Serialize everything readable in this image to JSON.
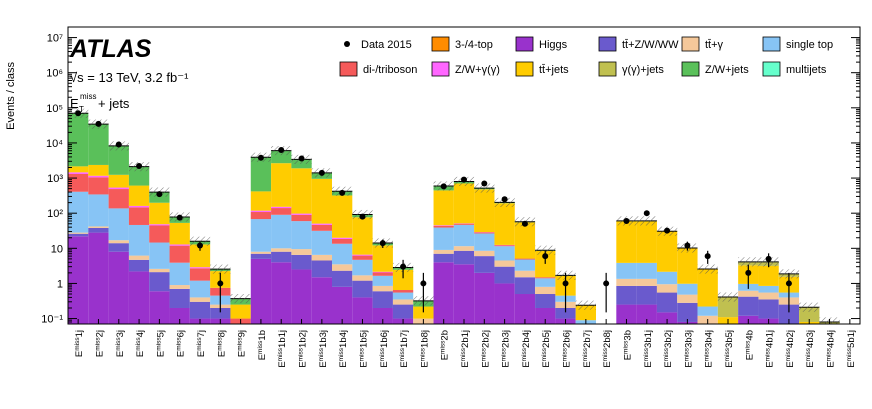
{
  "chart_data": {
    "type": "bar",
    "subtype": "stacked-histogram-log",
    "experiment": "ATLAS",
    "energy_label": "√s = 13 TeV, 3.2 fb⁻¹",
    "selection_label": "E_T^miss + jets",
    "ylabel": "Events / class",
    "yscale": "log",
    "ylim": [
      0.07,
      20000000
    ],
    "ytick_labels": [
      "10⁻¹",
      "1",
      "10",
      "10²",
      "10³",
      "10⁴",
      "10⁵",
      "10⁶",
      "10⁷"
    ],
    "ytick_values": [
      0.1,
      1,
      10,
      100,
      1000,
      10000,
      100000,
      1000000,
      10000000
    ],
    "categories": [
      "1j",
      "2j",
      "3j",
      "4j",
      "5j",
      "6j",
      "7j",
      "8j",
      "9j",
      "1b",
      "1b1j",
      "1b2j",
      "1b3j",
      "1b4j",
      "1b5j",
      "1b6j",
      "1b7j",
      "1b8j",
      "2b",
      "2b1j",
      "2b2j",
      "2b3j",
      "2b4j",
      "2b5j",
      "2b6j",
      "2b7j",
      "2b8j",
      "3b",
      "3b1j",
      "3b2j",
      "3b3j",
      "3b4j",
      "3b5j",
      "4b",
      "4b1j",
      "4b2j",
      "4b3j",
      "4b4j",
      "5b1j"
    ],
    "category_prefix": "E_T^miss",
    "legend": [
      {
        "name": "Data 2015",
        "kind": "marker"
      },
      {
        "name": "3-/4-top",
        "color": "#ff8c00"
      },
      {
        "name": "Higgs",
        "color": "#9932cc"
      },
      {
        "name": "tt̄+Z/W/WW",
        "color": "#6a5acd"
      },
      {
        "name": "tt̄+γ",
        "color": "#f5c89a"
      },
      {
        "name": "single top",
        "color": "#87c4f5"
      },
      {
        "name": "di-/triboson",
        "color": "#f55a5a"
      },
      {
        "name": "Z/W+γ(γ)",
        "color": "#ff66ff"
      },
      {
        "name": "tt̄+jets",
        "color": "#ffcc00"
      },
      {
        "name": "γ(γ)+jets",
        "color": "#c0c050"
      },
      {
        "name": "Z/W+jets",
        "color": "#5ac05a"
      },
      {
        "name": "multijets",
        "color": "#66ffcc"
      }
    ],
    "stack_order": [
      "Higgs",
      "tt̄+Z/W/WW",
      "tt̄+γ",
      "single top",
      "di-/triboson",
      "Z/W+γ(γ)",
      "tt̄+jets",
      "γ(γ)+jets",
      "Z/W+jets",
      "3-/4-top",
      "multijets"
    ],
    "stacks": [
      [
        22,
        4,
        2,
        380,
        900,
        150,
        700,
        0,
        68000,
        0,
        0
      ],
      [
        28,
        10,
        4,
        300,
        700,
        120,
        1200,
        0,
        32000,
        0,
        0
      ],
      [
        8,
        6,
        3,
        120,
        350,
        50,
        700,
        0,
        7000,
        0,
        0
      ],
      [
        2.2,
        2.5,
        1.5,
        40,
        100,
        15,
        450,
        0,
        1500,
        0,
        0
      ],
      [
        0.6,
        1.5,
        0.5,
        12,
        30,
        4,
        150,
        0,
        200,
        0,
        0
      ],
      [
        0.2,
        0.5,
        0.2,
        3,
        8,
        1,
        40,
        0,
        25,
        0,
        0
      ],
      [
        0.1,
        0.2,
        0.1,
        0.8,
        1.5,
        0.2,
        10,
        0,
        3,
        0,
        0
      ],
      [
        0.1,
        0.1,
        0.05,
        0.2,
        0.3,
        0,
        1.5,
        0,
        0.3,
        0,
        0
      ],
      [
        0,
        0,
        0,
        0.05,
        0.05,
        0,
        0.15,
        0,
        0.12,
        0,
        0
      ],
      [
        5,
        2,
        1,
        60,
        40,
        10,
        300,
        0,
        3500,
        0,
        0
      ],
      [
        4,
        4,
        2,
        80,
        50,
        12,
        2500,
        0,
        3400,
        0,
        0
      ],
      [
        2.5,
        4,
        3,
        50,
        30,
        8,
        1800,
        0,
        1500,
        0,
        0
      ],
      [
        1.5,
        3,
        2,
        25,
        15,
        4,
        900,
        0,
        450,
        0,
        0
      ],
      [
        0.8,
        1.5,
        1.2,
        10,
        5,
        1.5,
        300,
        0,
        100,
        0,
        0
      ],
      [
        0.4,
        0.8,
        0.5,
        3,
        1.5,
        0.4,
        70,
        0,
        15,
        0,
        0
      ],
      [
        0.2,
        0.4,
        0.25,
        0.8,
        0.4,
        0.1,
        10,
        0,
        2,
        0,
        0
      ],
      [
        0.1,
        0.15,
        0.1,
        0.2,
        0.1,
        0,
        1.8,
        0,
        0.4,
        0,
        0
      ],
      [
        0,
        0.05,
        0.05,
        0,
        0,
        0,
        0.12,
        0,
        0.1,
        0,
        0
      ],
      [
        4,
        3,
        2,
        30,
        5,
        1.5,
        400,
        0,
        150,
        0,
        0
      ],
      [
        3.5,
        5,
        3,
        35,
        4,
        1,
        650,
        0,
        100,
        0,
        0
      ],
      [
        2,
        4,
        2.5,
        18,
        2,
        0.5,
        450,
        0,
        40,
        0,
        0
      ],
      [
        1,
        2,
        1.5,
        7,
        0.8,
        0.2,
        180,
        0,
        10,
        0,
        0
      ],
      [
        0.5,
        1,
        0.8,
        2.5,
        0.3,
        0,
        50,
        0,
        2,
        0,
        0
      ],
      [
        0.2,
        0.3,
        0.3,
        0.6,
        0.1,
        0,
        7,
        0,
        0.3,
        0,
        0
      ],
      [
        0.1,
        0.1,
        0.1,
        0.15,
        0,
        0,
        1.2,
        0,
        0.05,
        0,
        0
      ],
      [
        0,
        0.03,
        0.03,
        0.03,
        0,
        0,
        0.15,
        0,
        0,
        0,
        0
      ],
      [
        0,
        0,
        0,
        0,
        0,
        0,
        0,
        0,
        0,
        0,
        0
      ],
      [
        0.25,
        0.6,
        0.5,
        2.5,
        0,
        0,
        55,
        0,
        1.5,
        0,
        0
      ],
      [
        0.25,
        0.6,
        0.5,
        2.5,
        0,
        0,
        55,
        0,
        1.5,
        0,
        0
      ],
      [
        0.15,
        0.4,
        0.4,
        1.2,
        0,
        0,
        28,
        0,
        0.5,
        0,
        0
      ],
      [
        0.08,
        0.2,
        0.2,
        0.5,
        0,
        0,
        9,
        0,
        0.2,
        0,
        0
      ],
      [
        0.02,
        0.05,
        0.05,
        0.1,
        0,
        0,
        2.3,
        0,
        0.05,
        0,
        0
      ],
      [
        0.01,
        0,
        0,
        0,
        0,
        0,
        0.1,
        0.3,
        0,
        0,
        0
      ],
      [
        0.12,
        0.3,
        0.2,
        0.35,
        0,
        0,
        2.3,
        0.8,
        0.05,
        0,
        0
      ],
      [
        0.1,
        0.25,
        0.2,
        0.3,
        0,
        0,
        2.3,
        0.9,
        0.05,
        0,
        0
      ],
      [
        0.05,
        0.2,
        0.15,
        0.15,
        0,
        0,
        1,
        0.3,
        0.02,
        0,
        0
      ],
      [
        0.01,
        0,
        0.02,
        0,
        0,
        0,
        0.05,
        0.13,
        0,
        0,
        0
      ],
      [
        0,
        0,
        0,
        0,
        0,
        0,
        0.02,
        0.06,
        0,
        0,
        0
      ],
      [
        0,
        0,
        0,
        0,
        0,
        0,
        0.01,
        0.04,
        0,
        0,
        0
      ]
    ],
    "data_points": [
      70000,
      35000,
      9000,
      2200,
      350,
      75,
      12,
      1,
      null,
      3800,
      6300,
      3600,
      1400,
      380,
      80,
      14,
      3,
      1,
      580,
      900,
      700,
      250,
      50,
      6,
      1,
      null,
      1,
      60,
      100,
      32,
      12,
      6,
      null,
      2,
      5,
      1,
      null,
      null,
      null
    ],
    "data_errors": [
      270,
      190,
      95,
      47,
      19,
      9,
      3.5,
      1,
      0,
      62,
      80,
      60,
      37,
      20,
      9,
      3.8,
      1.7,
      1,
      24,
      30,
      27,
      16,
      7,
      2.5,
      1,
      0,
      1,
      8,
      10,
      5.7,
      3.5,
      2.5,
      0,
      1.4,
      2.2,
      1,
      0,
      0,
      0
    ],
    "data_lower_errors": [
      270,
      190,
      95,
      47,
      19,
      9,
      3.5,
      0.85,
      0,
      62,
      80,
      60,
      37,
      20,
      9,
      3.8,
      1.6,
      0.85,
      24,
      30,
      27,
      16,
      7,
      2.4,
      0.85,
      0,
      0.85,
      8,
      10,
      5.6,
      3.4,
      2.4,
      0,
      1.3,
      2.1,
      0.85,
      0,
      0,
      0
    ]
  }
}
